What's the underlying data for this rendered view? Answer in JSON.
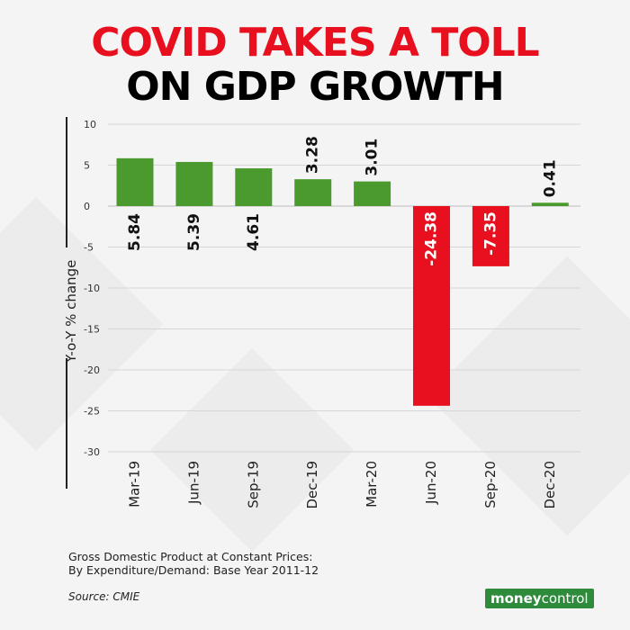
{
  "title_line1": "COVID TAKES A TOLL",
  "title_line2": "ON GDP GROWTH",
  "colors": {
    "positive": "#4a9a2e",
    "negative": "#e8101e",
    "title_red": "#e8101e",
    "brand": "#2e8b3c"
  },
  "footnote_line1": "Gross Domestic Product at Constant Prices:",
  "footnote_line2": "By Expenditure/Demand: Base Year 2011-12",
  "source": "Source: CMIE",
  "brand_part1": "money",
  "brand_part2": "control",
  "chart_data": {
    "type": "bar",
    "title": "COVID TAKES A TOLL ON GDP GROWTH",
    "ylabel": "Y-o-Y % change",
    "xlabel": "",
    "ylim": [
      -30,
      10
    ],
    "yticks": [
      10,
      5,
      0,
      -5,
      -10,
      -15,
      -20,
      -25,
      -30
    ],
    "grid": true,
    "categories": [
      "Mar-19",
      "Jun-19",
      "Sep-19",
      "Dec-19",
      "Mar-20",
      "Jun-20",
      "Sep-20",
      "Dec-20"
    ],
    "values": [
      5.84,
      5.39,
      4.61,
      3.28,
      3.01,
      -24.38,
      -7.35,
      0.41
    ],
    "labels": [
      "5.84",
      "5.39",
      "4.61",
      "3.28",
      "3.01",
      "-24.38",
      "-7.35",
      "0.41"
    ]
  }
}
